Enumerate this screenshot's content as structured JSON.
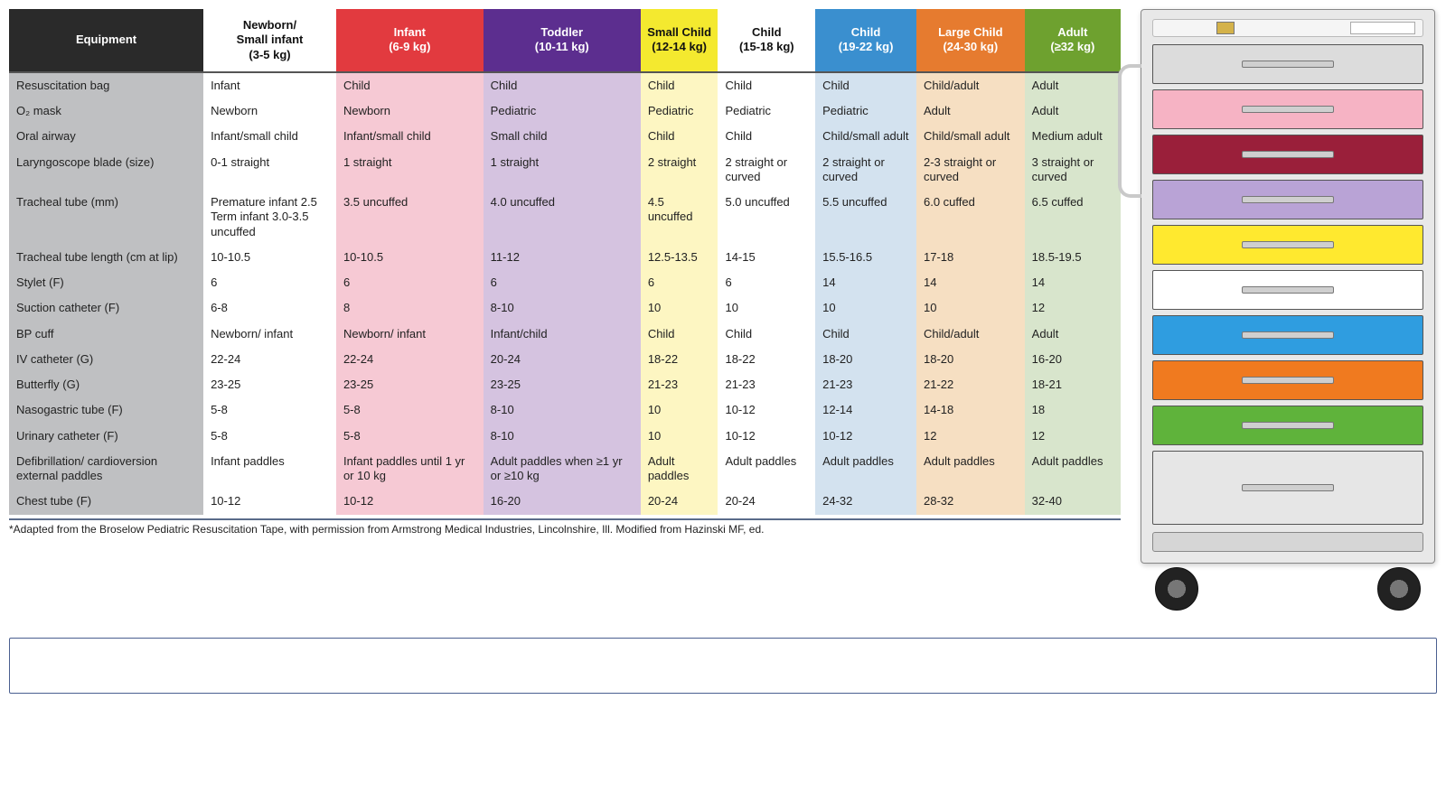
{
  "footnote": "*Adapted from the Broselow Pediatric Resuscitation Tape, with permission from Armstrong Medical Industries, Lincolnshire, Ill. Modified from Hazinski MF, ed.",
  "columns": [
    {
      "label": "Equipment",
      "bg": "#2a2a2a",
      "fg": "#ffffff",
      "col_bg": "#bfc0c2"
    },
    {
      "label": "Newborn/\nSmall infant\n(3-5 kg)",
      "bg": "#ffffff",
      "fg": "#111111",
      "col_bg": "#ffffff"
    },
    {
      "label": "Infant\n(6-9 kg)",
      "bg": "#e23a3f",
      "fg": "#ffffff",
      "col_bg": "#f6c9d4"
    },
    {
      "label": "Toddler\n(10-11 kg)",
      "bg": "#5c2e8f",
      "fg": "#ffffff",
      "col_bg": "#d5c3e0"
    },
    {
      "label": "Small Child\n(12-14 kg)",
      "bg": "#f4e92f",
      "fg": "#111111",
      "col_bg": "#fdf6c2"
    },
    {
      "label": "Child\n(15-18 kg)",
      "bg": "#ffffff",
      "fg": "#111111",
      "col_bg": "#ffffff"
    },
    {
      "label": "Child\n(19-22 kg)",
      "bg": "#3a8fcf",
      "fg": "#ffffff",
      "col_bg": "#d3e2ef"
    },
    {
      "label": "Large Child\n(24-30 kg)",
      "bg": "#e67b2f",
      "fg": "#ffffff",
      "col_bg": "#f6dfc2"
    },
    {
      "label": "Adult\n(≥32 kg)",
      "bg": "#6ea12f",
      "fg": "#ffffff",
      "col_bg": "#d8e5cc"
    }
  ],
  "rows": [
    {
      "label": "Resuscitation bag",
      "cells": [
        "Infant",
        "Child",
        "Child",
        "Child",
        "Child",
        "Child",
        "Child/adult",
        "Adult"
      ]
    },
    {
      "label": "O₂ mask",
      "cells": [
        "Newborn",
        "Newborn",
        "Pediatric",
        "Pediatric",
        "Pediatric",
        "Pediatric",
        "Adult",
        "Adult"
      ]
    },
    {
      "label": "Oral airway",
      "cells": [
        "Infant/small child",
        "Infant/small child",
        "Small child",
        "Child",
        "Child",
        "Child/small adult",
        "Child/small adult",
        "Medium adult"
      ]
    },
    {
      "label": "Laryngoscope blade (size)",
      "cells": [
        "0-1 straight",
        "1 straight",
        "1 straight",
        "2 straight",
        "2 straight or curved",
        "2 straight or curved",
        "2-3 straight or curved",
        "3 straight or curved"
      ]
    },
    {
      "label": "Tracheal tube (mm)",
      "cells": [
        "Premature infant 2.5\nTerm infant 3.0-3.5 uncuffed",
        "3.5 uncuffed",
        "4.0 uncuffed",
        "4.5 uncuffed",
        "5.0 uncuffed",
        "5.5 uncuffed",
        "6.0 cuffed",
        "6.5 cuffed"
      ]
    },
    {
      "label": "Tracheal tube length (cm at lip)",
      "cells": [
        "10-10.5",
        "10-10.5",
        "11-12",
        "12.5-13.5",
        "14-15",
        "15.5-16.5",
        "17-18",
        "18.5-19.5"
      ]
    },
    {
      "label": "Stylet (F)",
      "cells": [
        "6",
        "6",
        "6",
        "6",
        "6",
        "14",
        "14",
        "14"
      ]
    },
    {
      "label": "Suction catheter (F)",
      "cells": [
        "6-8",
        "8",
        "8-10",
        "10",
        "10",
        "10",
        "10",
        "12"
      ]
    },
    {
      "label": "BP cuff",
      "cells": [
        "Newborn/ infant",
        "Newborn/ infant",
        "Infant/child",
        "Child",
        "Child",
        "Child",
        "Child/adult",
        "Adult"
      ]
    },
    {
      "label": "IV catheter (G)",
      "cells": [
        "22-24",
        "22-24",
        "20-24",
        "18-22",
        "18-22",
        "18-20",
        "18-20",
        "16-20"
      ]
    },
    {
      "label": "Butterfly (G)",
      "cells": [
        "23-25",
        "23-25",
        "23-25",
        "21-23",
        "21-23",
        "21-23",
        "21-22",
        "18-21"
      ]
    },
    {
      "label": "Nasogastric tube (F)",
      "cells": [
        "5-8",
        "5-8",
        "8-10",
        "10",
        "10-12",
        "12-14",
        "14-18",
        "18"
      ]
    },
    {
      "label": "Urinary catheter (F)",
      "cells": [
        "5-8",
        "5-8",
        "8-10",
        "10",
        "10-12",
        "10-12",
        "12",
        "12"
      ]
    },
    {
      "label": "Defibrillation/ cardioversion external paddles",
      "cells": [
        "Infant paddles",
        "Infant paddles until 1 yr or 10 kg",
        "Adult paddles when ≥1 yr or ≥10 kg",
        "Adult paddles",
        "Adult paddles",
        "Adult paddles",
        "Adult paddles",
        "Adult paddles"
      ]
    },
    {
      "label": "Chest tube (F)",
      "cells": [
        "10-12",
        "10-12",
        "16-20",
        "20-24",
        "20-24",
        "24-32",
        "28-32",
        "32-40"
      ]
    }
  ],
  "cart_drawers": [
    {
      "color": "#dcdcdc",
      "tall": false
    },
    {
      "color": "#f6b3c4",
      "tall": false
    },
    {
      "color": "#9a1f3a",
      "tall": false
    },
    {
      "color": "#b9a3d6",
      "tall": false
    },
    {
      "color": "#ffe92f",
      "tall": false
    },
    {
      "color": "#ffffff",
      "tall": false
    },
    {
      "color": "#2f9de0",
      "tall": false
    },
    {
      "color": "#f07a1f",
      "tall": false
    },
    {
      "color": "#5fb33b",
      "tall": false
    },
    {
      "color": "#e6e6e6",
      "tall": true
    }
  ]
}
